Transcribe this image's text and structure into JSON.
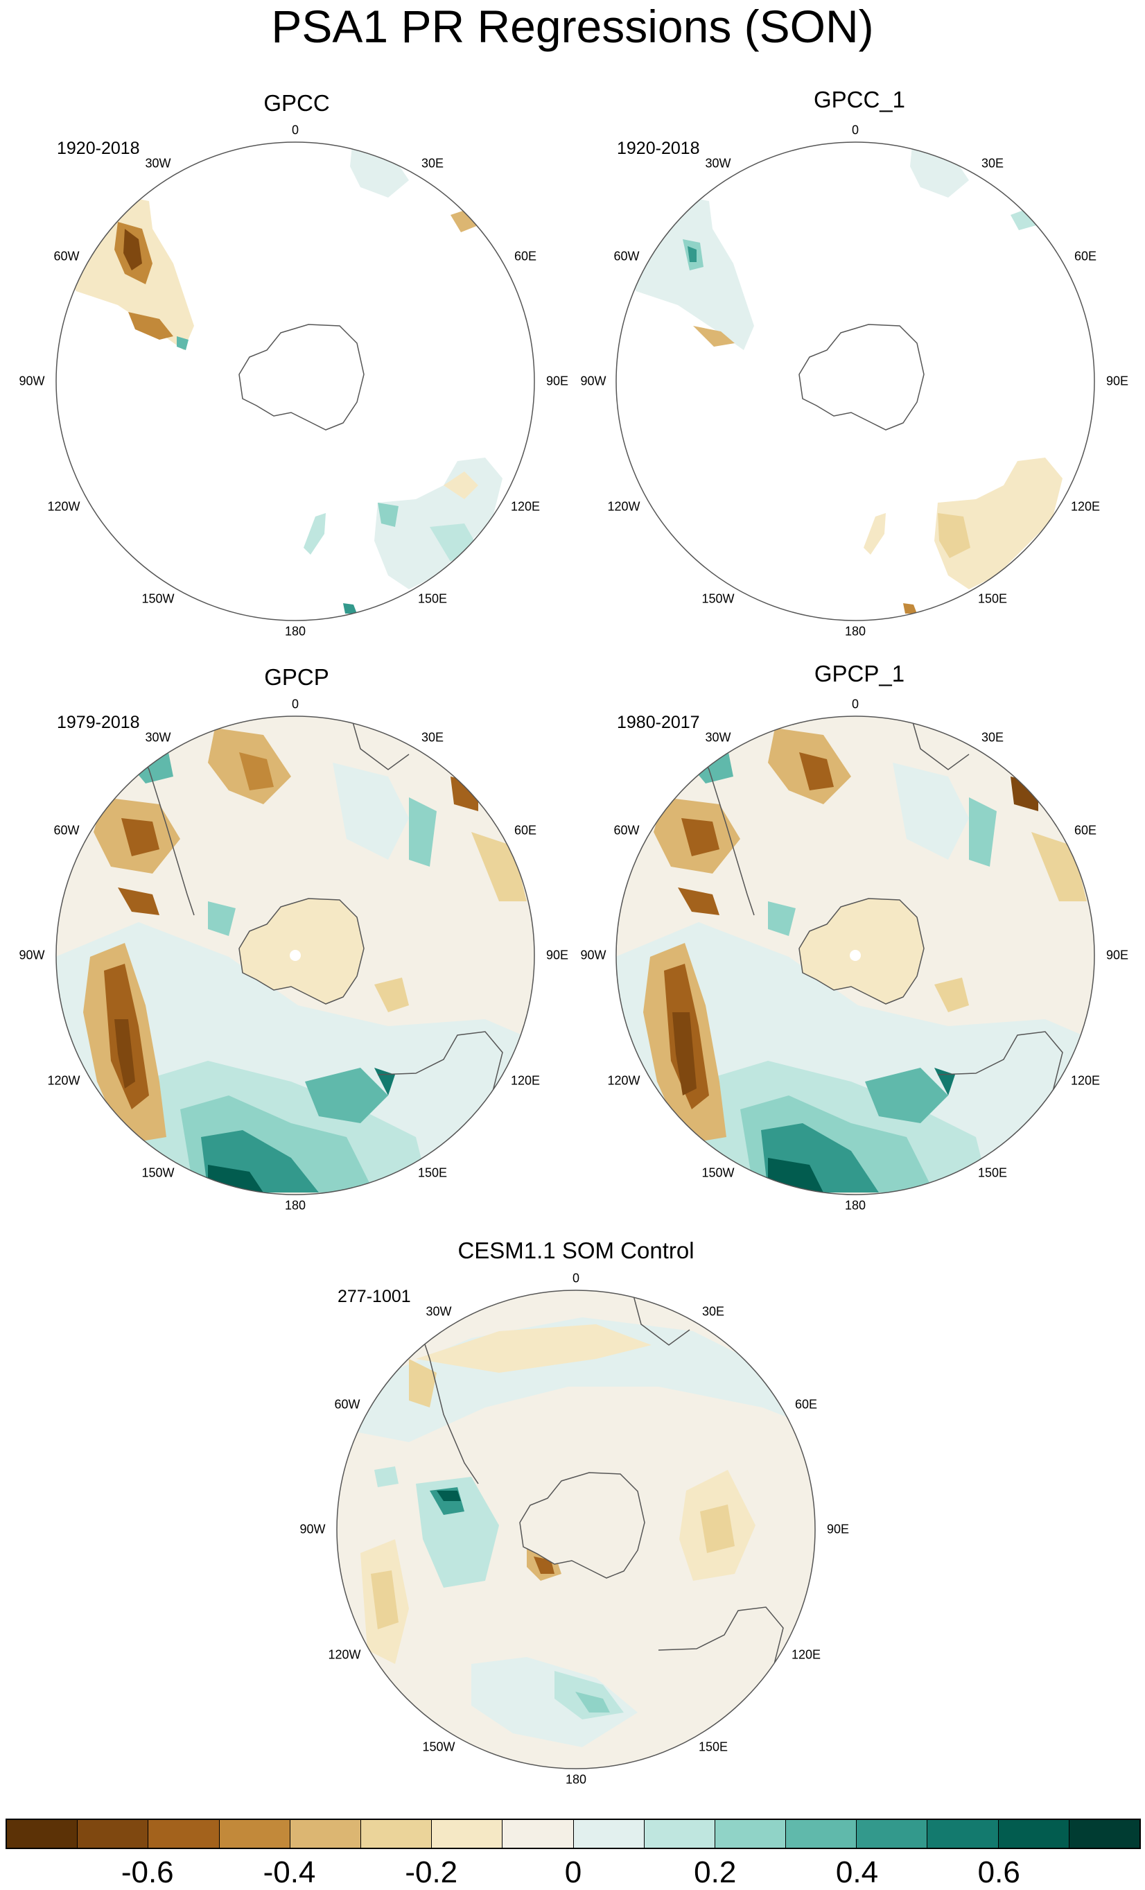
{
  "title": "PSA1 PR Regressions (SON)",
  "panels": [
    {
      "name": "GPCC",
      "period": "1920-2018",
      "data_coverage": "land only"
    },
    {
      "name": "GPCC_1",
      "period": "1920-2018",
      "data_coverage": "land only"
    },
    {
      "name": "GPCP",
      "period": "1979-2018",
      "data_coverage": "global"
    },
    {
      "name": "GPCP_1",
      "period": "1980-2017",
      "data_coverage": "global"
    },
    {
      "name": "CESM1.1 SOM Control",
      "period": "277-1001",
      "data_coverage": "global"
    }
  ],
  "longitude_labels": {
    "top": "0",
    "bottom": "180",
    "left": "90W",
    "right": "90E",
    "w30": "30W",
    "w60": "60W",
    "w120": "120W",
    "w150": "150W",
    "e30": "30E",
    "e60": "60E",
    "e120": "120E",
    "e150": "150E"
  },
  "colorbar": {
    "colors": [
      "#5c3206",
      "#7f4810",
      "#a3621c",
      "#c2893a",
      "#dcb672",
      "#ebd49a",
      "#f5e8c5",
      "#f4f0e6",
      "#e2f0ee",
      "#bfe6df",
      "#90d3c7",
      "#60b9ab",
      "#33998c",
      "#137a6e",
      "#025c4f",
      "#003c32"
    ],
    "tick_labels": [
      "-0.6",
      "-0.4",
      "-0.2",
      "0",
      "0.2",
      "0.4",
      "0.6"
    ],
    "tick_values": [
      -0.6,
      -0.4,
      -0.2,
      0,
      0.2,
      0.4,
      0.6
    ]
  },
  "map_data": {
    "projection": "south-polar stereographic",
    "variable": "precipitation regression on PSA1",
    "season": "SON"
  }
}
